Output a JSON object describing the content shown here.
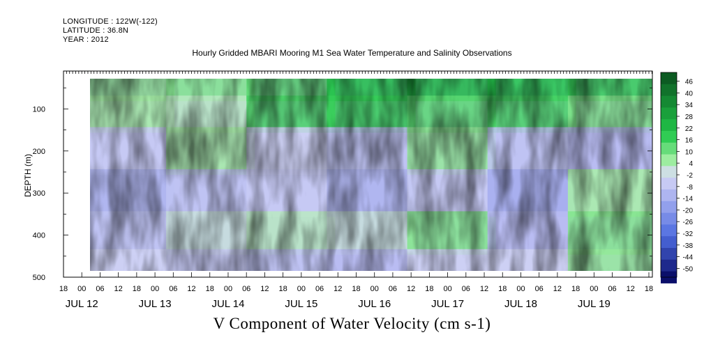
{
  "header": {
    "longitude": "LONGITUDE : 122W(-122)",
    "latitude": "LATITUDE : 36.8N",
    "year": "YEAR : 2012"
  },
  "chart_data": {
    "type": "heatmap",
    "title": "Hourly Gridded MBARI Mooring M1 Sea Water Temperature and Salinity Observations",
    "xlabel": "V Component of Water Velocity (cm s-1)",
    "ylabel": "DEPTH (m)",
    "y_axis": {
      "ticks": [
        100,
        200,
        300,
        400,
        500
      ],
      "range": [
        10,
        500
      ],
      "inverted": true
    },
    "x_axis": {
      "hour_ticks": [
        "18",
        "00",
        "06",
        "12",
        "18",
        "00",
        "06",
        "12",
        "18",
        "00",
        "06",
        "12",
        "18",
        "00",
        "06",
        "12",
        "18",
        "00",
        "06",
        "12",
        "18",
        "00",
        "06",
        "12",
        "18",
        "00",
        "06",
        "12",
        "18",
        "00",
        "06",
        "12",
        "18"
      ],
      "day_labels": [
        "JUL 12",
        "JUL 13",
        "JUL 14",
        "JUL 15",
        "JUL 16",
        "JUL 17",
        "JUL 18",
        "JUL 19"
      ]
    },
    "colorbar": {
      "labels": [
        "46",
        "40",
        "34",
        "28",
        "22",
        "16",
        "10",
        "4",
        "-2",
        "-8",
        "-14",
        "-20",
        "-26",
        "-32",
        "-38",
        "-44",
        "-50"
      ],
      "range": [
        -50,
        50
      ],
      "colors": {
        "strong_positive": "#0a4f1e",
        "positive": "#22c84a",
        "weak_positive": "#a8f0a8",
        "weak_negative": "#b8bcf2",
        "negative": "#4d6be0",
        "strong_negative": "#0b0f6a"
      }
    },
    "depth_profiles": [
      {
        "label": "JUL 13",
        "values": [
          8,
          6,
          -4,
          -10,
          -6,
          -2
        ]
      },
      {
        "label": "JUL 14",
        "values": [
          10,
          4,
          6,
          -6,
          2,
          -4
        ]
      },
      {
        "label": "JUL 15",
        "values": [
          14,
          16,
          -2,
          -4,
          4,
          -6
        ]
      },
      {
        "label": "JUL 16",
        "values": [
          22,
          18,
          -6,
          -10,
          2,
          -8
        ]
      },
      {
        "label": "JUL 17",
        "values": [
          24,
          14,
          8,
          -4,
          10,
          -2
        ]
      },
      {
        "label": "JUL 18",
        "values": [
          20,
          16,
          -6,
          -12,
          -8,
          -2
        ]
      },
      {
        "label": "JUL 19",
        "values": [
          18,
          10,
          -8,
          6,
          10,
          8
        ]
      }
    ],
    "profile_depths": [
      50,
      100,
      200,
      300,
      400,
      480
    ],
    "grid": false
  }
}
